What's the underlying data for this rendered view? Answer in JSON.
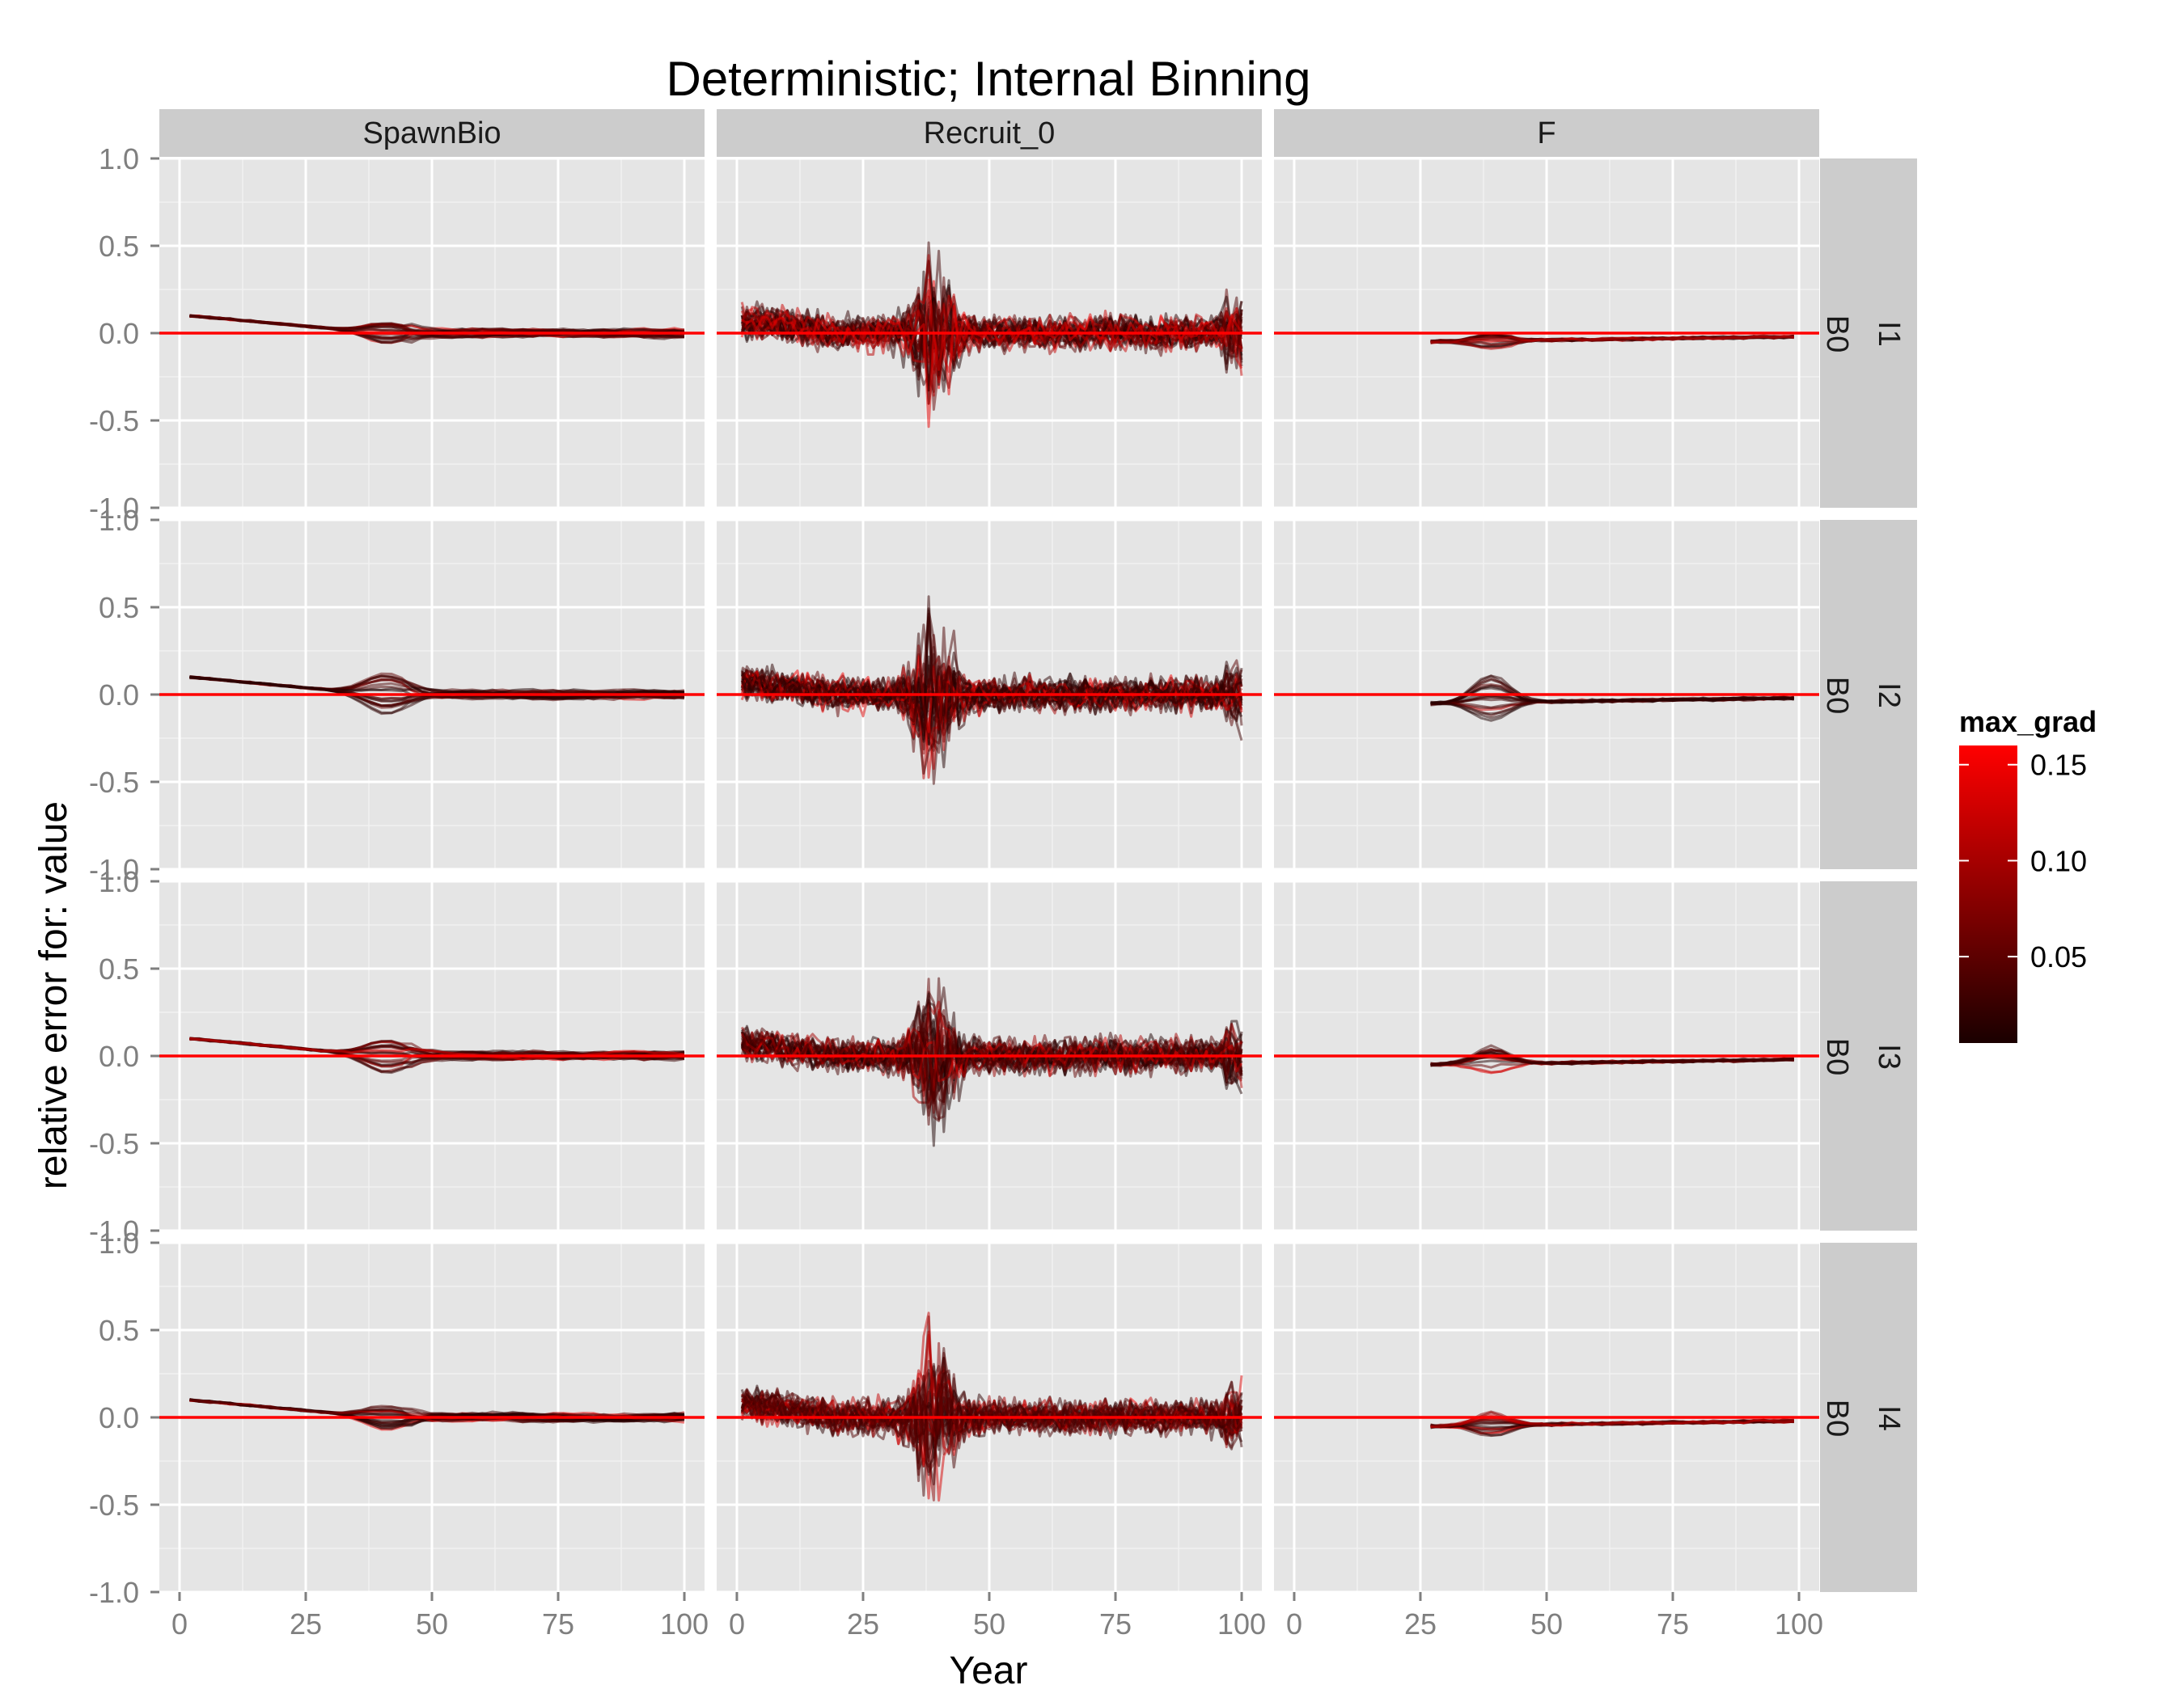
{
  "chart_data": {
    "type": "line",
    "title": "Deterministic; Internal Binning",
    "xlabel": "Year",
    "ylabel": "relative error for: value",
    "xlim": [
      -4,
      104
    ],
    "ylim": [
      -1.0,
      1.0
    ],
    "x_ticks": [
      "0",
      "25",
      "50",
      "75",
      "100"
    ],
    "y_ticks": [
      "-1.0",
      "-0.5",
      "0.0",
      "0.5",
      "1.0"
    ],
    "x_tick_values": [
      0,
      25,
      50,
      75,
      100
    ],
    "y_tick_values": [
      -1.0,
      -0.5,
      0.0,
      0.5,
      1.0
    ],
    "grid": true,
    "reference_line": {
      "y": 0.0,
      "color": "#ff0000"
    },
    "facet_columns": [
      "SpawnBio",
      "Recruit_0",
      "F"
    ],
    "facet_rows": [
      {
        "label_outer": "I1",
        "label_inner": "B0"
      },
      {
        "label_outer": "I2",
        "label_inner": "B0"
      },
      {
        "label_outer": "I3",
        "label_inner": "B0"
      },
      {
        "label_outer": "I4",
        "label_inner": "B0"
      }
    ],
    "legend": {
      "title": "max_grad",
      "position": "right",
      "breaks": [
        "0.15",
        "0.10",
        "0.05"
      ],
      "break_values": [
        0.15,
        0.1,
        0.05
      ],
      "range": [
        0.005,
        0.16
      ],
      "low_color": "#1a0000",
      "high_color": "#ff0000"
    },
    "colors": {
      "panel_background": "#e5e5e5",
      "strip_background": "#cccccc",
      "line_low": "#1a0000",
      "line_high": "#ff0000"
    },
    "series_summary": [
      {
        "column": "SpawnBio",
        "x_range": [
          2,
          100
        ],
        "start_value": 0.1,
        "end_value": 0.0,
        "disturbance_at_year": 40,
        "disturbance_amplitude": [
          0.06,
          0.12,
          0.1,
          0.07
        ]
      },
      {
        "column": "Recruit_0",
        "x_range": [
          1,
          100
        ],
        "noise_amplitude": 0.08,
        "spike_at_year": 38,
        "spike_max": [
          0.53,
          0.62,
          0.38,
          0.63
        ],
        "spike_min": [
          -0.43,
          -0.35,
          -0.33,
          -0.33
        ]
      },
      {
        "column": "F",
        "x_range": [
          27,
          100
        ],
        "start_value": -0.05,
        "end_value": -0.02,
        "disturbance_at_year": 40,
        "disturbance_amplitude": [
          0.05,
          0.16,
          0.1,
          0.07
        ]
      }
    ]
  }
}
